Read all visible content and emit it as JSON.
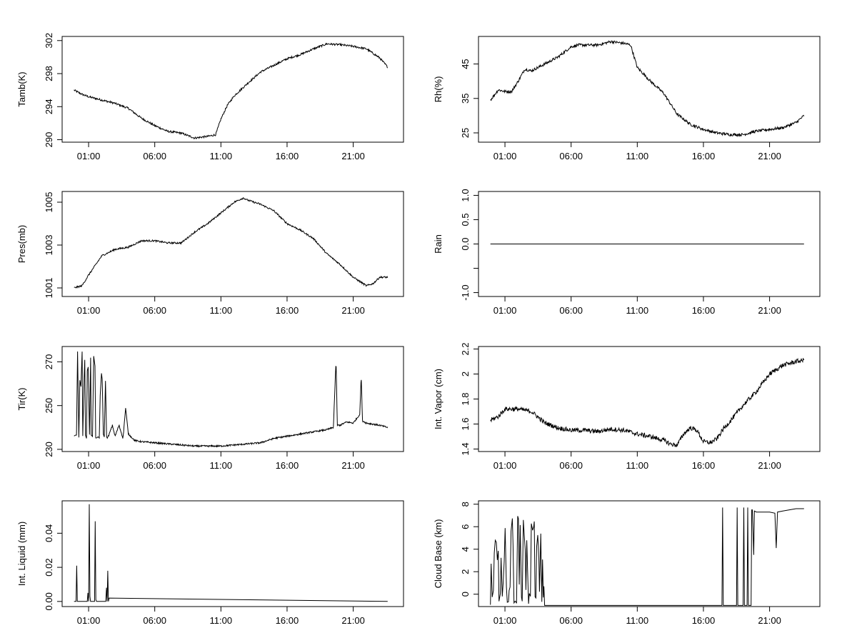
{
  "chart_data": [
    {
      "type": "line",
      "ylabel": "Tamb(K)",
      "x_ticks": [
        "01:00",
        "06:00",
        "11:00",
        "16:00",
        "21:00"
      ],
      "x_tick_hours": [
        1,
        6,
        11,
        16,
        21
      ],
      "xlim": [
        -1.0,
        24.8
      ],
      "ylim": [
        289.7,
        302.5
      ],
      "y_ticks": [
        290,
        294,
        298,
        302
      ],
      "noise": 0.12,
      "series": [
        {
          "x": [
            -0.1,
            0.5,
            1.0,
            2.0,
            3.0,
            4.0,
            5.0,
            6.0,
            7.0,
            8.0,
            9.0,
            10.0,
            10.6,
            11.0,
            11.5,
            12.0,
            13.0,
            14.0,
            15.0,
            16.0,
            17.0,
            18.0,
            19.0,
            20.0,
            21.0,
            22.0,
            23.0,
            23.6
          ],
          "y": [
            296.0,
            295.5,
            295.2,
            294.8,
            294.4,
            293.8,
            292.6,
            291.7,
            291.0,
            290.8,
            290.2,
            290.4,
            290.6,
            292.5,
            294.2,
            295.3,
            296.8,
            298.2,
            299.0,
            299.8,
            300.3,
            301.0,
            301.6,
            301.5,
            301.3,
            301.0,
            299.9,
            298.8
          ]
        }
      ]
    },
    {
      "type": "line",
      "ylabel": "Rh(%)",
      "x_ticks": [
        "01:00",
        "06:00",
        "11:00",
        "16:00",
        "21:00"
      ],
      "x_tick_hours": [
        1,
        6,
        11,
        16,
        21
      ],
      "xlim": [
        -1.0,
        24.8
      ],
      "ylim": [
        22.3,
        53.0
      ],
      "y_ticks": [
        25,
        35,
        45
      ],
      "noise": 0.4,
      "series": [
        {
          "x": [
            -0.1,
            0.5,
            1.0,
            1.5,
            2.0,
            2.5,
            3.0,
            4.0,
            5.0,
            6.0,
            6.5,
            7.0,
            8.0,
            9.0,
            10.0,
            10.5,
            11.0,
            12.0,
            13.0,
            14.0,
            15.0,
            16.0,
            17.0,
            18.0,
            19.0,
            20.0,
            21.0,
            22.0,
            23.0,
            23.6
          ],
          "y": [
            34.5,
            37.5,
            37.0,
            37.0,
            40.0,
            43.5,
            43.0,
            45.0,
            47.0,
            50.0,
            50.5,
            50.5,
            50.5,
            51.5,
            51.0,
            50.5,
            44.0,
            40.0,
            36.5,
            30.5,
            27.5,
            26.0,
            25.0,
            24.5,
            24.5,
            25.5,
            26.0,
            26.5,
            28.0,
            30.0
          ]
        }
      ]
    },
    {
      "type": "line",
      "ylabel": "Pres(mb)",
      "x_ticks": [
        "01:00",
        "06:00",
        "11:00",
        "16:00",
        "21:00"
      ],
      "x_tick_hours": [
        1,
        6,
        11,
        16,
        21
      ],
      "xlim": [
        -1.0,
        24.8
      ],
      "ylim": [
        1000.6,
        1005.5
      ],
      "y_ticks": [
        1001,
        1003,
        1005
      ],
      "noise": 0.04,
      "series": [
        {
          "x": [
            -0.1,
            0.5,
            1.0,
            2.0,
            3.0,
            4.0,
            5.0,
            6.0,
            7.0,
            8.0,
            9.0,
            10.0,
            11.0,
            12.0,
            12.7,
            13.0,
            14.0,
            15.0,
            16.0,
            17.0,
            18.0,
            19.0,
            20.0,
            21.0,
            22.0,
            22.5,
            23.0,
            23.6
          ],
          "y": [
            1001.0,
            1001.1,
            1001.6,
            1002.5,
            1002.8,
            1002.9,
            1003.2,
            1003.2,
            1003.1,
            1003.1,
            1003.6,
            1004.0,
            1004.5,
            1005.0,
            1005.2,
            1005.1,
            1004.9,
            1004.6,
            1004.0,
            1003.7,
            1003.3,
            1002.6,
            1002.1,
            1001.5,
            1001.1,
            1001.2,
            1001.5,
            1001.5
          ]
        }
      ]
    },
    {
      "type": "line",
      "ylabel": "Rain",
      "x_ticks": [
        "01:00",
        "06:00",
        "11:00",
        "16:00",
        "21:00"
      ],
      "x_tick_hours": [
        1,
        6,
        11,
        16,
        21
      ],
      "xlim": [
        -1.0,
        24.8
      ],
      "ylim": [
        -1.08,
        1.08
      ],
      "y_ticks": [
        -1.0,
        -0.5,
        0.0,
        0.5,
        1.0
      ],
      "y_tick_labels": [
        "-1.0",
        "",
        "0.0",
        "0.5",
        "1.0"
      ],
      "noise": 0,
      "series": [
        {
          "x": [
            -0.1,
            23.6
          ],
          "y": [
            0.0,
            0.0
          ]
        }
      ]
    },
    {
      "type": "line",
      "ylabel": "Tir(K)",
      "x_ticks": [
        "01:00",
        "06:00",
        "11:00",
        "16:00",
        "21:00"
      ],
      "x_tick_hours": [
        1,
        6,
        11,
        16,
        21
      ],
      "xlim": [
        -1.0,
        24.8
      ],
      "ylim": [
        229.0,
        277.0
      ],
      "y_ticks": [
        230,
        250,
        270
      ],
      "noise": 0.35,
      "spiky": {
        "from": -0.1,
        "to": 2.5,
        "low": 235,
        "high": 276
      },
      "series": [
        {
          "x": [
            2.5,
            2.8,
            3.0,
            3.3,
            3.6,
            3.8,
            4.0,
            4.5,
            5.0,
            6.0,
            7.0,
            8.0,
            9.0,
            10.0,
            11.0,
            12.0,
            13.0,
            14.0,
            15.0,
            16.0,
            17.0,
            18.0,
            19.0,
            19.5,
            19.7,
            19.8,
            20.0,
            20.5,
            21.0,
            21.5,
            21.6,
            21.7,
            22.0,
            23.0,
            23.6
          ],
          "y": [
            236,
            241,
            236,
            241,
            235,
            249,
            237,
            234,
            233.5,
            233,
            232.5,
            232,
            231.5,
            231.5,
            231.5,
            232,
            232.5,
            233,
            235,
            236,
            237,
            238,
            239,
            240,
            271,
            241,
            241,
            242.5,
            242,
            246,
            264,
            243,
            242,
            241,
            240
          ]
        }
      ]
    },
    {
      "type": "line",
      "ylabel": "Int. Vapor (cm)",
      "x_ticks": [
        "01:00",
        "06:00",
        "11:00",
        "16:00",
        "21:00"
      ],
      "x_tick_hours": [
        1,
        6,
        11,
        16,
        21
      ],
      "xlim": [
        -1.0,
        24.8
      ],
      "ylim": [
        1.38,
        2.22
      ],
      "y_ticks": [
        1.4,
        1.6,
        1.8,
        2.0,
        2.2
      ],
      "noise": 0.018,
      "series": [
        {
          "x": [
            -0.1,
            0.5,
            1.0,
            2.0,
            3.0,
            4.0,
            5.0,
            6.0,
            7.0,
            8.0,
            9.0,
            10.0,
            11.0,
            12.0,
            13.0,
            13.5,
            14.0,
            14.5,
            15.0,
            15.5,
            16.0,
            16.5,
            17.0,
            17.5,
            18.0,
            19.0,
            20.0,
            21.0,
            22.0,
            23.0,
            23.6
          ],
          "y": [
            1.63,
            1.66,
            1.72,
            1.72,
            1.7,
            1.61,
            1.57,
            1.55,
            1.55,
            1.54,
            1.56,
            1.55,
            1.52,
            1.5,
            1.47,
            1.44,
            1.43,
            1.52,
            1.57,
            1.55,
            1.46,
            1.45,
            1.48,
            1.56,
            1.62,
            1.75,
            1.86,
            2.0,
            2.07,
            2.1,
            2.11
          ]
        }
      ]
    },
    {
      "type": "line",
      "ylabel": "Int. Liquid (mm)",
      "x_ticks": [
        "01:00",
        "06:00",
        "11:00",
        "16:00",
        "21:00"
      ],
      "x_tick_hours": [
        1,
        6,
        11,
        16,
        21
      ],
      "xlim": [
        -1.0,
        24.8
      ],
      "ylim": [
        -0.003,
        0.059
      ],
      "y_ticks": [
        0.0,
        0.02,
        0.04
      ],
      "y_tick_labels": [
        "0.00",
        "0.02",
        "0.04"
      ],
      "noise": 0,
      "series": [
        {
          "x": [
            -0.1,
            0.05,
            0.1,
            0.15,
            0.9,
            0.95,
            1.0,
            1.05,
            1.1,
            1.15,
            1.45,
            1.5,
            1.55,
            1.6,
            2.3,
            2.35,
            2.4,
            2.45,
            2.5,
            2.55,
            23.6
          ],
          "y": [
            0,
            0,
            0.021,
            0,
            0,
            0.005,
            0,
            0.057,
            0.003,
            0,
            0,
            0.047,
            0.001,
            0,
            0,
            0.008,
            0,
            0.018,
            0,
            0.002,
            0
          ]
        }
      ]
    },
    {
      "type": "line",
      "ylabel": "Cloud Base (km)",
      "x_ticks": [
        "01:00",
        "06:00",
        "11:00",
        "16:00",
        "21:00"
      ],
      "x_tick_hours": [
        1,
        6,
        11,
        16,
        21
      ],
      "xlim": [
        -1.0,
        24.8
      ],
      "ylim": [
        -1.1,
        8.3
      ],
      "y_ticks": [
        0,
        2,
        4,
        6,
        8
      ],
      "noise": 0,
      "spiky": {
        "from": -0.1,
        "to": 4.0,
        "low": -1,
        "high": 7
      },
      "series": [
        {
          "x": [
            4.0,
            17.4,
            17.45,
            17.5,
            18.5,
            18.55,
            18.6,
            19.0,
            19.05,
            19.1,
            19.3,
            19.35,
            19.4,
            19.6,
            19.65,
            19.7,
            19.8,
            19.85,
            20.0,
            20.5,
            21.0,
            21.4,
            21.5,
            21.6,
            22.0,
            22.5,
            23.0,
            23.6
          ],
          "y": [
            -1,
            -1,
            7.7,
            -1,
            -1,
            7.7,
            -1,
            -1,
            7.7,
            -1,
            -1,
            7.7,
            -1,
            -1,
            7.5,
            7.5,
            3.5,
            7.4,
            7.3,
            7.3,
            7.3,
            7.2,
            4.1,
            7.3,
            7.4,
            7.5,
            7.6,
            7.6
          ]
        }
      ]
    }
  ]
}
